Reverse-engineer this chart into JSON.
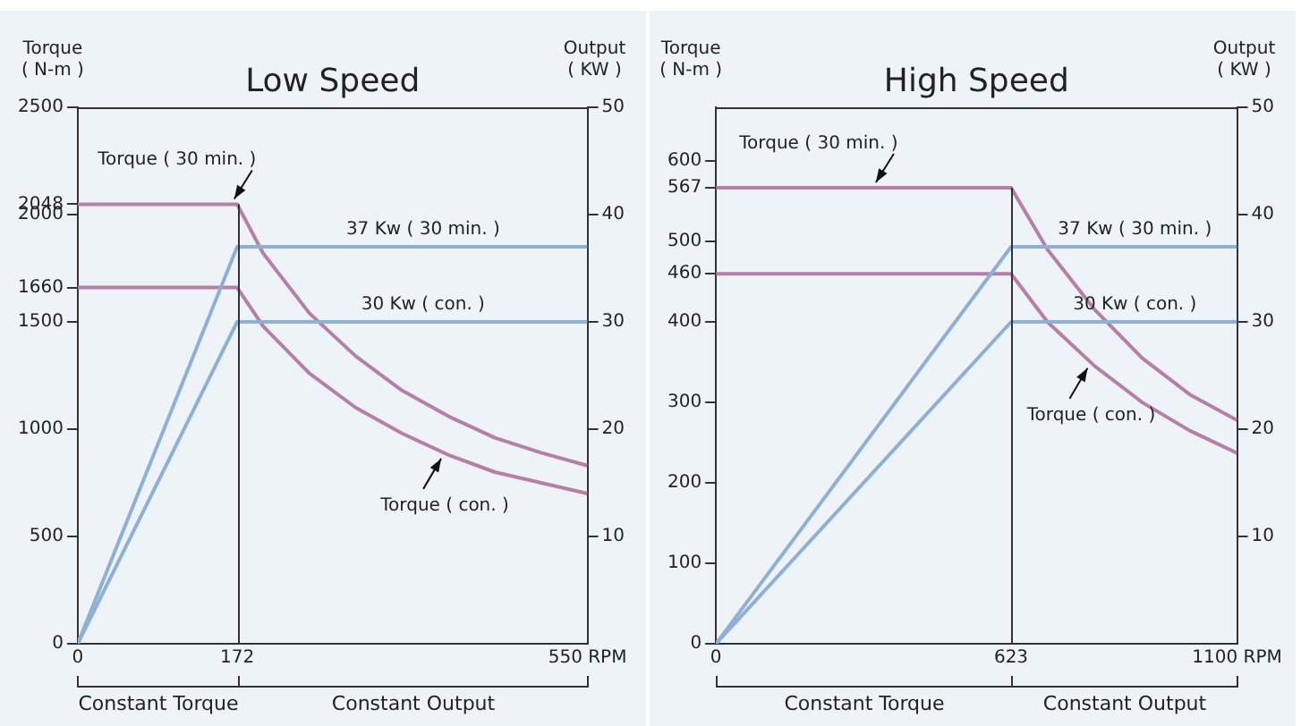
{
  "chart_data": [
    {
      "type": "line",
      "title": "Low Speed",
      "ylabel": "Torque\n( N-m )",
      "y2label": "Output\n( KW )",
      "xlim": [
        0,
        550
      ],
      "xticks": [
        0,
        172,
        {
          "value": 550,
          "label": "550 RPM"
        }
      ],
      "ylim": [
        0,
        2500
      ],
      "yticks": [
        0,
        500,
        1000,
        1500,
        1660,
        2000,
        2048,
        2500
      ],
      "y2lim": [
        0,
        50
      ],
      "y2ticks": [
        10,
        20,
        30,
        40,
        50
      ],
      "legend": false,
      "marker": "none",
      "series": [
        {
          "name": "37 Kw ( 30 min. )",
          "color": "#8fb0d6",
          "axis": "y2",
          "x": [
            0,
            172,
            550
          ],
          "values": [
            0,
            37,
            37
          ]
        },
        {
          "name": "30 Kw ( con. )",
          "color": "#8fb0d6",
          "axis": "y2",
          "x": [
            0,
            172,
            550
          ],
          "values": [
            0,
            30,
            30
          ]
        },
        {
          "name": "Torque ( 30 min. )",
          "color": "#b67fa8",
          "x": [
            0,
            172,
            200,
            250,
            300,
            350,
            400,
            450,
            500,
            550
          ],
          "values": [
            2048,
            2048,
            1820,
            1540,
            1340,
            1180,
            1060,
            960,
            890,
            830
          ]
        },
        {
          "name": "Torque ( con. )",
          "color": "#b67fa8",
          "x": [
            0,
            172,
            200,
            250,
            300,
            350,
            400,
            450,
            500,
            550
          ],
          "values": [
            1660,
            1660,
            1480,
            1260,
            1100,
            980,
            880,
            800,
            750,
            700
          ]
        }
      ],
      "ref_lines": [
        {
          "axis": "x",
          "value": 172
        }
      ],
      "annotations": [
        "Constant Torque",
        "Constant Output"
      ]
    },
    {
      "type": "line",
      "title": "High Speed",
      "ylabel": "Torque\n( N-m )",
      "y2label": "Output\n( KW )",
      "xlim": [
        0,
        1100
      ],
      "xticks": [
        0,
        623,
        {
          "value": 1100,
          "label": "1100 RPM"
        }
      ],
      "ylim": [
        0,
        667
      ],
      "yticks": [
        0,
        100,
        200,
        300,
        400,
        460,
        500,
        567,
        600
      ],
      "y2lim": [
        0,
        50
      ],
      "y2ticks": [
        10,
        20,
        30,
        40,
        50
      ],
      "legend": false,
      "marker": "none",
      "series": [
        {
          "name": "37 Kw ( 30 min. )",
          "color": "#8fb0d6",
          "axis": "y2",
          "x": [
            0,
            623,
            1100
          ],
          "values": [
            0,
            37,
            37
          ]
        },
        {
          "name": "30 Kw ( con. )",
          "color": "#8fb0d6",
          "axis": "y2",
          "x": [
            0,
            623,
            1100
          ],
          "values": [
            0,
            30,
            30
          ]
        },
        {
          "name": "Torque ( 30 min. )",
          "color": "#b67fa8",
          "x": [
            0,
            623,
            700,
            800,
            900,
            1000,
            1100
          ],
          "values": [
            567,
            567,
            490,
            415,
            355,
            310,
            278
          ]
        },
        {
          "name": "Torque ( con. )",
          "color": "#b67fa8",
          "x": [
            0,
            623,
            700,
            800,
            900,
            1000,
            1100
          ],
          "values": [
            460,
            460,
            400,
            345,
            300,
            265,
            237
          ]
        }
      ],
      "ref_lines": [
        {
          "axis": "x",
          "value": 623
        }
      ],
      "annotations": [
        "Constant Torque",
        "Constant Output"
      ]
    }
  ]
}
